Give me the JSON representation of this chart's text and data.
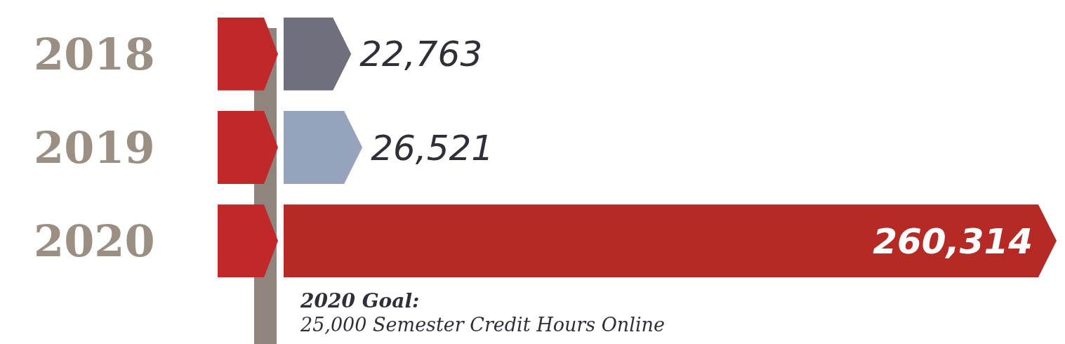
{
  "chart_data": {
    "type": "bar",
    "orientation": "horizontal",
    "categories": [
      "2018",
      "2019",
      "2020"
    ],
    "values": [
      22763,
      26521,
      260314
    ],
    "colors": [
      "#6f6f7d",
      "#95a3bc",
      "#b52a25"
    ],
    "value_labels": [
      "22,763",
      "26,521",
      "260,314"
    ],
    "annotations": [
      "2020 Goal:",
      "25,000 Semester Credit Hours Online"
    ]
  }
}
